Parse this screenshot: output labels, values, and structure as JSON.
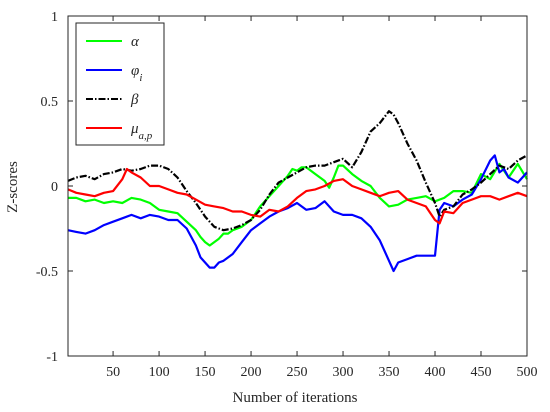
{
  "chart_data": {
    "type": "line",
    "xlabel": "Number of iterations",
    "ylabel": "Z-scores",
    "xlim": [
      1,
      500
    ],
    "ylim": [
      -1,
      1
    ],
    "xticks": [
      "50",
      "100",
      "150",
      "200",
      "250",
      "300",
      "350",
      "400",
      "450",
      "500"
    ],
    "yticks": [
      "-1",
      "-0.5",
      "0",
      "0.5",
      "1"
    ],
    "grid": false,
    "legend_position": "top-left",
    "series": [
      {
        "key": "alpha",
        "legend": {
          "symbol": "α",
          "sub": ""
        },
        "color": "#00ff00",
        "dash": "",
        "points": [
          [
            1,
            -0.07
          ],
          [
            10,
            -0.07
          ],
          [
            20,
            -0.09
          ],
          [
            30,
            -0.08
          ],
          [
            40,
            -0.1
          ],
          [
            50,
            -0.09
          ],
          [
            60,
            -0.1
          ],
          [
            70,
            -0.07
          ],
          [
            80,
            -0.08
          ],
          [
            90,
            -0.1
          ],
          [
            100,
            -0.14
          ],
          [
            110,
            -0.15
          ],
          [
            120,
            -0.16
          ],
          [
            130,
            -0.21
          ],
          [
            140,
            -0.26
          ],
          [
            145,
            -0.3
          ],
          [
            150,
            -0.33
          ],
          [
            155,
            -0.35
          ],
          [
            160,
            -0.33
          ],
          [
            165,
            -0.31
          ],
          [
            170,
            -0.28
          ],
          [
            175,
            -0.28
          ],
          [
            180,
            -0.26
          ],
          [
            190,
            -0.24
          ],
          [
            200,
            -0.2
          ],
          [
            210,
            -0.12
          ],
          [
            220,
            -0.06
          ],
          [
            230,
            0.0
          ],
          [
            240,
            0.06
          ],
          [
            245,
            0.1
          ],
          [
            250,
            0.09
          ],
          [
            255,
            0.11
          ],
          [
            260,
            0.11
          ],
          [
            270,
            0.07
          ],
          [
            280,
            0.03
          ],
          [
            285,
            -0.01
          ],
          [
            290,
            0.05
          ],
          [
            295,
            0.12
          ],
          [
            300,
            0.12
          ],
          [
            310,
            0.07
          ],
          [
            320,
            0.03
          ],
          [
            330,
            0.0
          ],
          [
            340,
            -0.07
          ],
          [
            350,
            -0.12
          ],
          [
            360,
            -0.11
          ],
          [
            370,
            -0.08
          ],
          [
            380,
            -0.07
          ],
          [
            390,
            -0.06
          ],
          [
            400,
            -0.09
          ],
          [
            410,
            -0.07
          ],
          [
            420,
            -0.03
          ],
          [
            430,
            -0.03
          ],
          [
            440,
            -0.04
          ],
          [
            450,
            0.07
          ],
          [
            460,
            0.04
          ],
          [
            470,
            0.13
          ],
          [
            480,
            0.05
          ],
          [
            490,
            0.13
          ],
          [
            500,
            0.04
          ]
        ]
      },
      {
        "key": "phi",
        "legend": {
          "symbol": "φ",
          "sub": "i"
        },
        "color": "#0000ff",
        "dash": "",
        "points": [
          [
            1,
            -0.26
          ],
          [
            10,
            -0.27
          ],
          [
            20,
            -0.28
          ],
          [
            30,
            -0.26
          ],
          [
            40,
            -0.23
          ],
          [
            50,
            -0.21
          ],
          [
            60,
            -0.19
          ],
          [
            70,
            -0.17
          ],
          [
            80,
            -0.19
          ],
          [
            90,
            -0.17
          ],
          [
            100,
            -0.18
          ],
          [
            110,
            -0.2
          ],
          [
            120,
            -0.2
          ],
          [
            130,
            -0.25
          ],
          [
            140,
            -0.35
          ],
          [
            145,
            -0.42
          ],
          [
            150,
            -0.45
          ],
          [
            155,
            -0.48
          ],
          [
            160,
            -0.48
          ],
          [
            165,
            -0.45
          ],
          [
            170,
            -0.44
          ],
          [
            175,
            -0.42
          ],
          [
            180,
            -0.4
          ],
          [
            190,
            -0.33
          ],
          [
            200,
            -0.26
          ],
          [
            210,
            -0.22
          ],
          [
            220,
            -0.18
          ],
          [
            230,
            -0.15
          ],
          [
            240,
            -0.13
          ],
          [
            250,
            -0.1
          ],
          [
            260,
            -0.14
          ],
          [
            270,
            -0.13
          ],
          [
            280,
            -0.09
          ],
          [
            290,
            -0.15
          ],
          [
            300,
            -0.17
          ],
          [
            310,
            -0.17
          ],
          [
            320,
            -0.19
          ],
          [
            330,
            -0.24
          ],
          [
            340,
            -0.32
          ],
          [
            350,
            -0.44
          ],
          [
            355,
            -0.5
          ],
          [
            360,
            -0.45
          ],
          [
            370,
            -0.43
          ],
          [
            380,
            -0.41
          ],
          [
            390,
            -0.41
          ],
          [
            400,
            -0.41
          ],
          [
            405,
            -0.14
          ],
          [
            410,
            -0.1
          ],
          [
            420,
            -0.12
          ],
          [
            430,
            -0.08
          ],
          [
            440,
            -0.05
          ],
          [
            450,
            0.04
          ],
          [
            460,
            0.15
          ],
          [
            465,
            0.18
          ],
          [
            470,
            0.08
          ],
          [
            475,
            0.1
          ],
          [
            480,
            0.05
          ],
          [
            490,
            0.02
          ],
          [
            500,
            0.08
          ]
        ]
      },
      {
        "key": "beta",
        "legend": {
          "symbol": "β",
          "sub": ""
        },
        "color": "#000000",
        "dash": "7 2 1.5 2",
        "points": [
          [
            1,
            0.03
          ],
          [
            10,
            0.05
          ],
          [
            20,
            0.06
          ],
          [
            30,
            0.04
          ],
          [
            40,
            0.07
          ],
          [
            50,
            0.08
          ],
          [
            60,
            0.1
          ],
          [
            70,
            0.09
          ],
          [
            80,
            0.1
          ],
          [
            90,
            0.12
          ],
          [
            100,
            0.12
          ],
          [
            110,
            0.1
          ],
          [
            120,
            0.05
          ],
          [
            130,
            -0.03
          ],
          [
            140,
            -0.1
          ],
          [
            150,
            -0.18
          ],
          [
            160,
            -0.24
          ],
          [
            170,
            -0.26
          ],
          [
            180,
            -0.25
          ],
          [
            190,
            -0.23
          ],
          [
            200,
            -0.2
          ],
          [
            210,
            -0.14
          ],
          [
            220,
            -0.05
          ],
          [
            230,
            0.02
          ],
          [
            240,
            0.05
          ],
          [
            250,
            0.08
          ],
          [
            260,
            0.11
          ],
          [
            270,
            0.12
          ],
          [
            280,
            0.12
          ],
          [
            290,
            0.14
          ],
          [
            300,
            0.16
          ],
          [
            310,
            0.11
          ],
          [
            320,
            0.2
          ],
          [
            330,
            0.32
          ],
          [
            340,
            0.37
          ],
          [
            350,
            0.44
          ],
          [
            355,
            0.42
          ],
          [
            360,
            0.37
          ],
          [
            370,
            0.25
          ],
          [
            380,
            0.15
          ],
          [
            390,
            0.02
          ],
          [
            400,
            -0.1
          ],
          [
            405,
            -0.18
          ],
          [
            410,
            -0.14
          ],
          [
            420,
            -0.12
          ],
          [
            430,
            -0.05
          ],
          [
            440,
            -0.02
          ],
          [
            450,
            0.02
          ],
          [
            460,
            0.07
          ],
          [
            470,
            0.12
          ],
          [
            480,
            0.1
          ],
          [
            490,
            0.15
          ],
          [
            500,
            0.18
          ]
        ]
      },
      {
        "key": "mu",
        "legend": {
          "symbol": "μ",
          "sub": "a,p"
        },
        "color": "#ff0000",
        "dash": "",
        "points": [
          [
            1,
            -0.02
          ],
          [
            10,
            -0.04
          ],
          [
            20,
            -0.05
          ],
          [
            30,
            -0.06
          ],
          [
            40,
            -0.04
          ],
          [
            50,
            -0.03
          ],
          [
            60,
            0.04
          ],
          [
            65,
            0.1
          ],
          [
            70,
            0.08
          ],
          [
            80,
            0.05
          ],
          [
            90,
            0.0
          ],
          [
            100,
            0.0
          ],
          [
            110,
            -0.02
          ],
          [
            120,
            -0.04
          ],
          [
            130,
            -0.05
          ],
          [
            140,
            -0.08
          ],
          [
            150,
            -0.11
          ],
          [
            160,
            -0.12
          ],
          [
            170,
            -0.13
          ],
          [
            180,
            -0.15
          ],
          [
            190,
            -0.15
          ],
          [
            200,
            -0.17
          ],
          [
            210,
            -0.18
          ],
          [
            220,
            -0.14
          ],
          [
            230,
            -0.15
          ],
          [
            240,
            -0.12
          ],
          [
            250,
            -0.07
          ],
          [
            260,
            -0.03
          ],
          [
            270,
            -0.02
          ],
          [
            280,
            0.0
          ],
          [
            290,
            0.03
          ],
          [
            300,
            0.04
          ],
          [
            310,
            0.0
          ],
          [
            320,
            -0.02
          ],
          [
            330,
            -0.04
          ],
          [
            340,
            -0.06
          ],
          [
            350,
            -0.04
          ],
          [
            360,
            -0.03
          ],
          [
            370,
            -0.08
          ],
          [
            380,
            -0.1
          ],
          [
            390,
            -0.12
          ],
          [
            400,
            -0.2
          ],
          [
            405,
            -0.22
          ],
          [
            410,
            -0.15
          ],
          [
            420,
            -0.16
          ],
          [
            430,
            -0.1
          ],
          [
            440,
            -0.08
          ],
          [
            450,
            -0.06
          ],
          [
            460,
            -0.06
          ],
          [
            470,
            -0.08
          ],
          [
            480,
            -0.06
          ],
          [
            490,
            -0.04
          ],
          [
            500,
            -0.06
          ]
        ]
      }
    ]
  }
}
